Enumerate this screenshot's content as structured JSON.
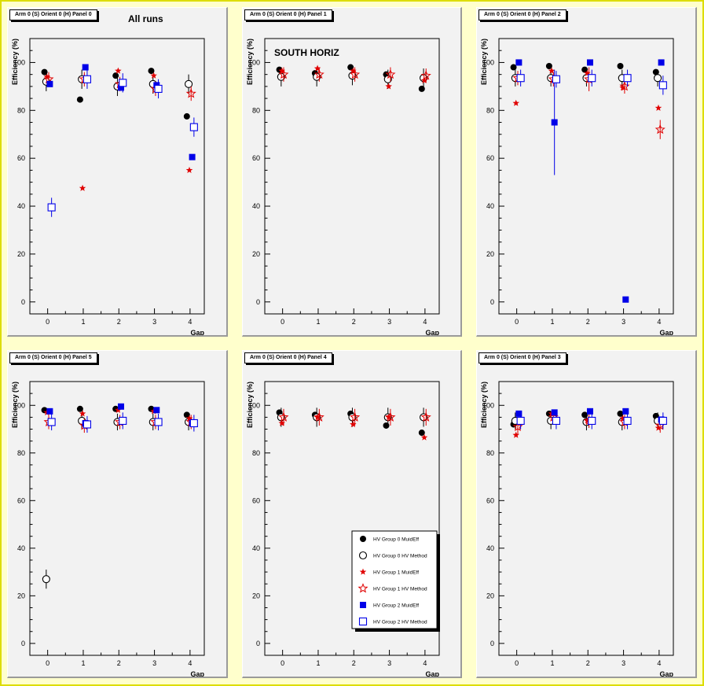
{
  "legend_labels": [
    "HV Group 0 MuidEff",
    "HV Group 0 HV Method",
    "HV Group 1 MuidEff",
    "HV Group 1 HV Method",
    "HV Group 2 MuidEff",
    "HV Group 2 HV Method"
  ],
  "colors": {
    "group0": "#000000",
    "group1": "#e00000",
    "group2": "#0000e8",
    "pad_bg": "#f2f2f2",
    "canvas_bg": "#ffffcc"
  },
  "chart_data": [
    {
      "type": "scatter",
      "panel_title": "Arm 0 (S) Orient 0 (H) Panel 0",
      "title": "All runs",
      "subtitle": "",
      "xlabel": "Gap",
      "ylabel": "Efficiency (%)",
      "xlim": [
        -0.5,
        4.4
      ],
      "ylim": [
        -5,
        110
      ],
      "x_ticks": [
        0,
        1,
        2,
        3,
        4
      ],
      "y_ticks": [
        0,
        20,
        40,
        60,
        80,
        100
      ],
      "grid": false,
      "show_legend": false,
      "series": [
        {
          "name": "HV Group 0 MuidEff",
          "marker": "filled-circle",
          "x": [
            0,
            1,
            2,
            3,
            4
          ],
          "y": [
            96,
            84.5,
            94.5,
            96.5,
            77.5
          ],
          "err": [
            0,
            0,
            0,
            0,
            0
          ]
        },
        {
          "name": "HV Group 0 HV Method",
          "marker": "open-circle",
          "x": [
            0,
            1,
            2,
            3,
            4
          ],
          "y": [
            92,
            93,
            90,
            91,
            91
          ],
          "err": [
            4,
            4,
            4,
            4,
            4
          ]
        },
        {
          "name": "HV Group 1 MuidEff",
          "marker": "filled-star",
          "x": [
            0,
            1,
            2,
            3,
            4
          ],
          "y": [
            94,
            47.5,
            96.5,
            94.5,
            55
          ],
          "err": [
            0,
            0,
            0,
            0,
            0
          ]
        },
        {
          "name": "HV Group 1 HV Method",
          "marker": "open-star",
          "x": [
            0,
            1,
            2,
            3,
            4
          ],
          "y": [
            93,
            93,
            91,
            89,
            87
          ],
          "err": [
            3,
            3,
            3,
            3,
            3
          ]
        },
        {
          "name": "HV Group 2 MuidEff",
          "marker": "filled-square",
          "x": [
            0,
            1,
            2,
            3,
            4
          ],
          "y": [
            91,
            98,
            89.5,
            90.5,
            60.5
          ],
          "err": [
            0,
            0,
            0,
            0,
            0
          ]
        },
        {
          "name": "HV Group 2 HV Method",
          "marker": "open-square",
          "x": [
            0,
            1,
            2,
            3,
            4
          ],
          "y": [
            39.5,
            93,
            91.5,
            89,
            73
          ],
          "err": [
            4,
            4,
            4,
            4,
            4
          ]
        }
      ]
    },
    {
      "type": "scatter",
      "panel_title": "Arm 0 (S) Orient 0 (H) Panel 1",
      "title": "SOUTH HORIZ",
      "subtitle": "",
      "xlabel": "Gap",
      "ylabel": "Efficiency (%)",
      "xlim": [
        -0.5,
        4.4
      ],
      "ylim": [
        -5,
        110
      ],
      "x_ticks": [
        0,
        1,
        2,
        3,
        4
      ],
      "y_ticks": [
        0,
        20,
        40,
        60,
        80,
        100
      ],
      "grid": false,
      "show_legend": false,
      "series": [
        {
          "name": "HV Group 0 MuidEff",
          "marker": "filled-circle",
          "x": [
            0,
            1,
            2,
            3,
            4
          ],
          "y": [
            97,
            95.5,
            98,
            95,
            89
          ],
          "err": [
            0,
            0,
            0,
            0,
            0
          ]
        },
        {
          "name": "HV Group 0 HV Method",
          "marker": "open-circle",
          "x": [
            0,
            1,
            2,
            3,
            4
          ],
          "y": [
            94,
            94,
            94.5,
            93,
            93.5
          ],
          "err": [
            4,
            4,
            4,
            4,
            4
          ]
        },
        {
          "name": "HV Group 1 MuidEff",
          "marker": "filled-star",
          "x": [
            0,
            1,
            2,
            3,
            4
          ],
          "y": [
            96.5,
            97.5,
            96.5,
            90,
            92.5
          ],
          "err": [
            0,
            0,
            0,
            0,
            0
          ]
        },
        {
          "name": "HV Group 1 HV Method",
          "marker": "open-star",
          "x": [
            0,
            1,
            2,
            3,
            4
          ],
          "y": [
            95,
            95,
            95,
            95,
            94.5
          ],
          "err": [
            3,
            3,
            3,
            3,
            3
          ]
        },
        {
          "name": "HV Group 2 MuidEff",
          "marker": "filled-square",
          "x": [],
          "y": [],
          "err": []
        },
        {
          "name": "HV Group 2 HV Method",
          "marker": "open-square",
          "x": [],
          "y": [],
          "err": []
        }
      ]
    },
    {
      "type": "scatter",
      "panel_title": "Arm 0 (S) Orient 0 (H) Panel 2",
      "title": "",
      "subtitle": "",
      "xlabel": "Gap",
      "ylabel": "Efficiency (%)",
      "xlim": [
        -0.5,
        4.4
      ],
      "ylim": [
        -5,
        110
      ],
      "x_ticks": [
        0,
        1,
        2,
        3,
        4
      ],
      "y_ticks": [
        0,
        20,
        40,
        60,
        80,
        100
      ],
      "grid": false,
      "show_legend": false,
      "series": [
        {
          "name": "HV Group 0 MuidEff",
          "marker": "filled-circle",
          "x": [
            0,
            1,
            2,
            3,
            4
          ],
          "y": [
            98,
            98.5,
            97,
            98.5,
            96
          ],
          "err": [
            0,
            0,
            0,
            0,
            0
          ]
        },
        {
          "name": "HV Group 0 HV Method",
          "marker": "open-circle",
          "x": [
            0,
            1,
            2,
            3,
            4
          ],
          "y": [
            93.5,
            93.5,
            93.5,
            93.5,
            93.5
          ],
          "err": [
            3.5,
            3.5,
            3.5,
            3.5,
            3.5
          ]
        },
        {
          "name": "HV Group 1 MuidEff",
          "marker": "filled-star",
          "x": [
            0,
            1,
            2,
            3,
            4
          ],
          "y": [
            83,
            96.5,
            95.5,
            89.5,
            81
          ],
          "err": [
            0,
            0,
            0,
            0,
            0
          ]
        },
        {
          "name": "HV Group 1 HV Method",
          "marker": "open-star",
          "x": [
            0,
            1,
            2,
            3,
            4
          ],
          "y": [
            93.5,
            93,
            93,
            90,
            72
          ],
          "err": [
            3,
            3,
            5,
            3,
            4
          ]
        },
        {
          "name": "HV Group 2 MuidEff",
          "marker": "filled-square",
          "x": [
            0,
            1,
            2,
            3,
            4
          ],
          "y": [
            100,
            75,
            100,
            1,
            100
          ],
          "err": [
            0,
            22,
            0,
            0,
            0
          ]
        },
        {
          "name": "HV Group 2 HV Method",
          "marker": "open-square",
          "x": [
            0,
            1,
            2,
            3,
            4
          ],
          "y": [
            93.5,
            93,
            93.5,
            93.5,
            90.5
          ],
          "err": [
            3.5,
            3.5,
            3.5,
            3.5,
            4
          ]
        }
      ]
    },
    {
      "type": "scatter",
      "panel_title": "Arm 0 (S) Orient 0 (H) Panel 5",
      "title": "",
      "subtitle": "",
      "xlabel": "Gap",
      "ylabel": "Efficiency (%)",
      "xlim": [
        -0.5,
        4.4
      ],
      "ylim": [
        -5,
        110
      ],
      "x_ticks": [
        0,
        1,
        2,
        3,
        4
      ],
      "y_ticks": [
        0,
        20,
        40,
        60,
        80,
        100
      ],
      "grid": false,
      "show_legend": false,
      "series": [
        {
          "name": "HV Group 0 MuidEff",
          "marker": "filled-circle",
          "x": [
            0,
            1,
            2,
            3,
            4
          ],
          "y": [
            98,
            98.5,
            98.5,
            98.5,
            96
          ],
          "err": [
            0,
            0,
            0,
            0,
            0
          ]
        },
        {
          "name": "HV Group 0 HV Method",
          "marker": "open-circle",
          "x": [
            0,
            1,
            2,
            3,
            4
          ],
          "y": [
            27,
            93.5,
            93,
            93,
            93
          ],
          "err": [
            4,
            3.5,
            3.5,
            3.5,
            3.5
          ]
        },
        {
          "name": "HV Group 1 MuidEff",
          "marker": "filled-star",
          "x": [
            0,
            1,
            2,
            3,
            4
          ],
          "y": [
            97,
            96.5,
            98,
            97.5,
            94.5
          ],
          "err": [
            0,
            0,
            0,
            0,
            0
          ]
        },
        {
          "name": "HV Group 1 HV Method",
          "marker": "open-star",
          "x": [
            0,
            1,
            2,
            3,
            4
          ],
          "y": [
            93,
            91.5,
            93,
            93,
            93
          ],
          "err": [
            3,
            3,
            3,
            3,
            3
          ]
        },
        {
          "name": "HV Group 2 MuidEff",
          "marker": "filled-square",
          "x": [
            0,
            1,
            2,
            3,
            4
          ],
          "y": [
            97.5,
            92.5,
            99.5,
            98,
            92.5
          ],
          "err": [
            0,
            0,
            0,
            0,
            0
          ]
        },
        {
          "name": "HV Group 2 HV Method",
          "marker": "open-square",
          "x": [
            0,
            1,
            2,
            3,
            4
          ],
          "y": [
            93,
            92,
            93.5,
            93,
            92.5
          ],
          "err": [
            3.5,
            3.5,
            3.5,
            3.5,
            3.5
          ]
        }
      ]
    },
    {
      "type": "scatter",
      "panel_title": "Arm 0 (S) Orient 0 (H) Panel 4",
      "title": "",
      "subtitle": "",
      "xlabel": "Gap",
      "ylabel": "Efficiency (%)",
      "xlim": [
        -0.5,
        4.4
      ],
      "ylim": [
        -5,
        110
      ],
      "x_ticks": [
        0,
        1,
        2,
        3,
        4
      ],
      "y_ticks": [
        0,
        20,
        40,
        60,
        80,
        100
      ],
      "grid": false,
      "show_legend": true,
      "legend_position": "bottom-right",
      "series": [
        {
          "name": "HV Group 0 MuidEff",
          "marker": "filled-circle",
          "x": [
            0,
            1,
            2,
            3,
            4
          ],
          "y": [
            97,
            96,
            96.5,
            91.5,
            88.5
          ],
          "err": [
            0,
            0,
            0,
            0,
            0
          ]
        },
        {
          "name": "HV Group 0 HV Method",
          "marker": "open-circle",
          "x": [
            0,
            1,
            2,
            3,
            4
          ],
          "y": [
            95,
            95,
            95,
            95,
            95
          ],
          "err": [
            4,
            4,
            4,
            4,
            4
          ]
        },
        {
          "name": "HV Group 1 MuidEff",
          "marker": "filled-star",
          "x": [
            0,
            1,
            2,
            3,
            4
          ],
          "y": [
            92.5,
            95,
            92,
            95,
            86.5
          ],
          "err": [
            0,
            0,
            0,
            0,
            0
          ]
        },
        {
          "name": "HV Group 1 HV Method",
          "marker": "open-star",
          "x": [
            0,
            1,
            2,
            3,
            4
          ],
          "y": [
            95,
            95,
            95,
            95,
            95
          ],
          "err": [
            3.5,
            3.5,
            3.5,
            3.5,
            3.5
          ]
        },
        {
          "name": "HV Group 2 MuidEff",
          "marker": "filled-square",
          "x": [],
          "y": [],
          "err": []
        },
        {
          "name": "HV Group 2 HV Method",
          "marker": "open-square",
          "x": [],
          "y": [],
          "err": []
        }
      ]
    },
    {
      "type": "scatter",
      "panel_title": "Arm 0 (S) Orient 0 (H) Panel 3",
      "title": "",
      "subtitle": "",
      "xlabel": "Gap",
      "ylabel": "Efficiency (%)",
      "xlim": [
        -0.5,
        4.4
      ],
      "ylim": [
        -5,
        110
      ],
      "x_ticks": [
        0,
        1,
        2,
        3,
        4
      ],
      "y_ticks": [
        0,
        20,
        40,
        60,
        80,
        100
      ],
      "grid": false,
      "show_legend": false,
      "series": [
        {
          "name": "HV Group 0 MuidEff",
          "marker": "filled-circle",
          "x": [
            0,
            1,
            2,
            3,
            4
          ],
          "y": [
            92,
            96.5,
            96,
            96.5,
            95.5
          ],
          "err": [
            0,
            0,
            0,
            0,
            0
          ]
        },
        {
          "name": "HV Group 0 HV Method",
          "marker": "open-circle",
          "x": [
            0,
            1,
            2,
            3,
            4
          ],
          "y": [
            93.5,
            93.5,
            93,
            93,
            93.5
          ],
          "err": [
            3.5,
            3.5,
            3.5,
            3.5,
            3.5
          ]
        },
        {
          "name": "HV Group 1 MuidEff",
          "marker": "filled-star",
          "x": [
            0,
            1,
            2,
            3,
            4
          ],
          "y": [
            87.5,
            96.5,
            93.5,
            94.5,
            90.5
          ],
          "err": [
            0,
            0,
            0,
            0,
            0
          ]
        },
        {
          "name": "HV Group 1 HV Method",
          "marker": "open-star",
          "x": [
            0,
            1,
            2,
            3,
            4
          ],
          "y": [
            91,
            95,
            93.5,
            93,
            91.5
          ],
          "err": [
            3,
            3,
            3,
            3,
            3
          ]
        },
        {
          "name": "HV Group 2 MuidEff",
          "marker": "filled-square",
          "x": [
            0,
            1,
            2,
            3,
            4
          ],
          "y": [
            96.5,
            97,
            97.5,
            97.5,
            94
          ],
          "err": [
            0,
            0,
            0,
            0,
            0
          ]
        },
        {
          "name": "HV Group 2 HV Method",
          "marker": "open-square",
          "x": [
            0,
            1,
            2,
            3,
            4
          ],
          "y": [
            93.5,
            93.5,
            93.5,
            93.5,
            93.5
          ],
          "err": [
            3.5,
            3.5,
            3.5,
            3.5,
            3.5
          ]
        }
      ]
    }
  ]
}
